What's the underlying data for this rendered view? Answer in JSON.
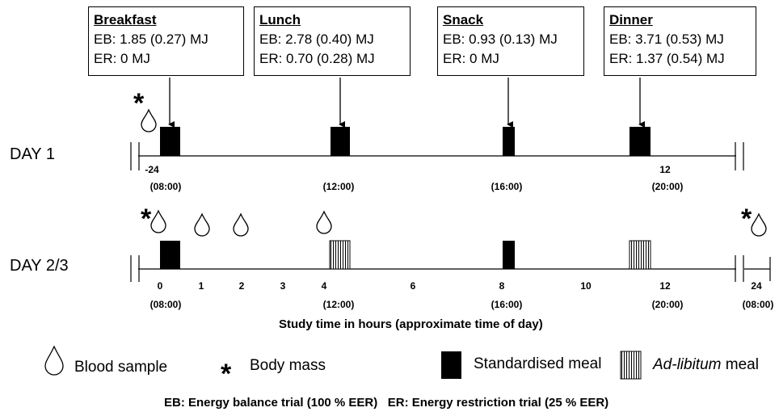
{
  "meals": [
    {
      "title": "Breakfast",
      "eb": "EB: 1.85 (0.27) MJ",
      "er": "ER: 0 MJ"
    },
    {
      "title": "Lunch",
      "eb": "EB: 2.78 (0.40) MJ",
      "er": "ER: 0.70 (0.28) MJ"
    },
    {
      "title": "Snack",
      "eb": "EB: 0.93 (0.13) MJ",
      "er": "ER: 0 MJ"
    },
    {
      "title": "Dinner",
      "eb": "EB: 3.71 (0.53) MJ",
      "er": "ER: 1.37 (0.54) MJ"
    }
  ],
  "day1": {
    "label": "DAY 1",
    "ticks": [
      "-24",
      "12"
    ],
    "times": [
      "(08:00)",
      "(12:00)",
      "(16:00)",
      "(20:00)"
    ]
  },
  "day2": {
    "label": "DAY 2/3",
    "ticks": [
      "0",
      "1",
      "2",
      "3",
      "4",
      "6",
      "8",
      "10",
      "12",
      "24"
    ],
    "times": [
      "(08:00)",
      "(12:00)",
      "(16:00)",
      "(20:00)",
      "(08:00)"
    ]
  },
  "axis_caption": "Study time in hours (approximate time of day)",
  "legend": {
    "blood": "Blood sample",
    "mass": "Body mass",
    "standard_prefix": "Standardised meal",
    "adlib_italic": "Ad-libitum",
    "adlib_suffix": " meal"
  },
  "footer": "EB: Energy balance trial (100 % EER)   ER: Energy restriction trial (25 % EER)",
  "colors": {
    "ink": "#000000",
    "background": "#ffffff"
  }
}
